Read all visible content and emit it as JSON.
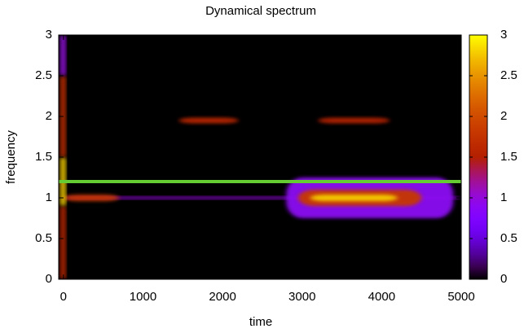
{
  "chart_data": {
    "type": "heatmap",
    "title": "Dynamical spectrum",
    "xlabel": "time",
    "ylabel": "frequency",
    "xlim": [
      -60,
      5000
    ],
    "xticks": [
      0,
      1000,
      2000,
      3000,
      4000,
      5000
    ],
    "ylim": [
      0,
      3
    ],
    "yticks": [
      0,
      0.5,
      1,
      1.5,
      2,
      2.5,
      3
    ],
    "clim": [
      0,
      3
    ],
    "cticks": [
      0,
      0.5,
      1,
      1.5,
      2,
      2.5,
      3
    ],
    "features": [
      {
        "time": [
          0,
          5000
        ],
        "frequency": 1.0,
        "width": 0.03,
        "value": 1.0
      },
      {
        "time": [
          0,
          700
        ],
        "frequency": 1.0,
        "width": 0.08,
        "value": 1.8
      },
      {
        "time": [
          -40,
          30
        ],
        "frequency": 0.45,
        "width": 0.9,
        "value": 1.6
      },
      {
        "time": [
          -40,
          30
        ],
        "frequency": 1.2,
        "width": 0.6,
        "value": 2.8
      },
      {
        "time": [
          -40,
          30
        ],
        "frequency": 2.0,
        "width": 1.0,
        "value": 1.7
      },
      {
        "time": [
          -40,
          30
        ],
        "frequency": 2.75,
        "width": 0.5,
        "value": 1.0
      },
      {
        "time": [
          1450,
          2200
        ],
        "frequency": 1.95,
        "width": 0.07,
        "value": 1.6
      },
      {
        "time": [
          3200,
          4100
        ],
        "frequency": 1.95,
        "width": 0.07,
        "value": 1.5
      },
      {
        "time": [
          2800,
          4900
        ],
        "frequency": 1.0,
        "width": 0.5,
        "value": 0.9
      },
      {
        "time": [
          2950,
          4500
        ],
        "frequency": 1.0,
        "width": 0.2,
        "value": 1.8
      },
      {
        "time": [
          3100,
          4200
        ],
        "frequency": 1.0,
        "width": 0.08,
        "value": 2.8
      }
    ],
    "lines": [
      {
        "y": 1.2,
        "color": "#66cc33"
      }
    ]
  }
}
